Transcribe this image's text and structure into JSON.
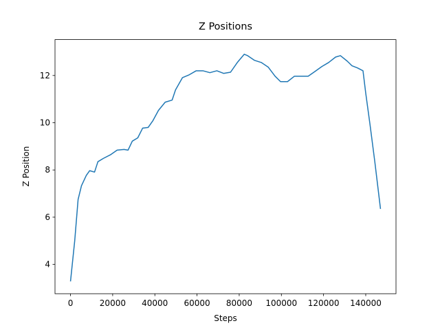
{
  "chart_data": {
    "type": "line",
    "title": "Z Positions",
    "xlabel": "Steps",
    "ylabel": "Z Position",
    "x": [
      0,
      2000,
      3600,
      5200,
      7500,
      9100,
      11400,
      13000,
      15600,
      18900,
      22100,
      25400,
      27300,
      29300,
      31900,
      34200,
      36800,
      39100,
      41700,
      44900,
      48200,
      49800,
      53100,
      56300,
      59600,
      62800,
      66100,
      69400,
      72600,
      75900,
      79100,
      82400,
      84000,
      87300,
      90500,
      93800,
      97000,
      99600,
      102900,
      106200,
      109400,
      112700,
      115900,
      119200,
      122400,
      125700,
      128000,
      131200,
      133500,
      136100,
      138700,
      140000,
      142000,
      144300,
      147000
    ],
    "series": [
      {
        "name": "Z Position",
        "color": "#1f77b4",
        "values": [
          3.28,
          5.0,
          6.75,
          7.33,
          7.77,
          7.97,
          7.91,
          8.35,
          8.49,
          8.64,
          8.84,
          8.87,
          8.84,
          9.22,
          9.36,
          9.77,
          9.8,
          10.09,
          10.52,
          10.87,
          10.96,
          11.39,
          11.91,
          12.03,
          12.2,
          12.2,
          12.12,
          12.2,
          12.09,
          12.14,
          12.55,
          12.9,
          12.84,
          12.64,
          12.55,
          12.35,
          11.97,
          11.74,
          11.74,
          11.97,
          11.97,
          11.97,
          12.17,
          12.38,
          12.55,
          12.78,
          12.84,
          12.61,
          12.41,
          12.32,
          12.2,
          11.25,
          9.94,
          8.35,
          6.35
        ]
      }
    ],
    "xlim": [
      -7350,
      154350
    ],
    "ylim": [
      2.76,
      13.52
    ],
    "xticks": [
      0,
      20000,
      40000,
      60000,
      80000,
      100000,
      120000,
      140000
    ],
    "yticks": [
      4,
      6,
      8,
      10,
      12
    ],
    "grid": false
  }
}
